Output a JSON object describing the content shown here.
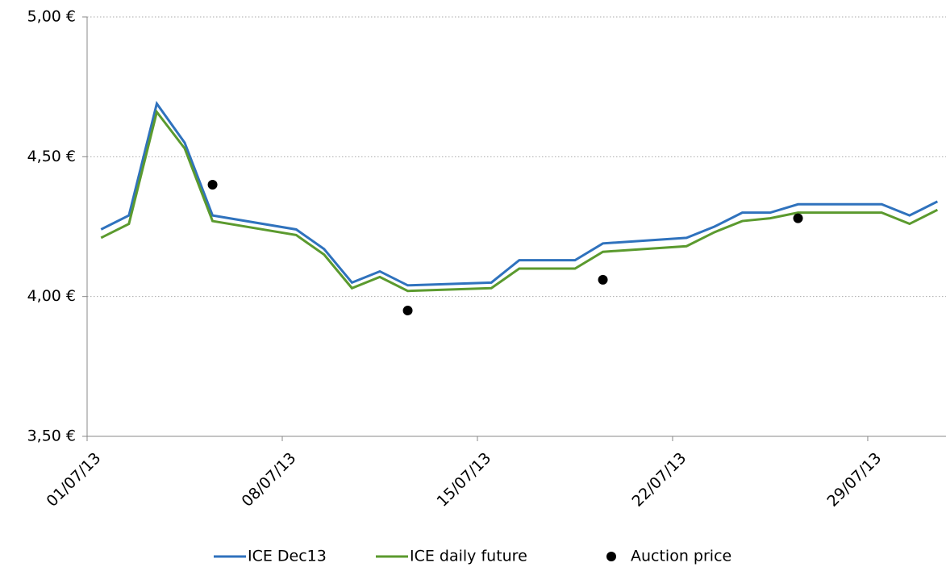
{
  "chart_data": {
    "type": "line",
    "x": [
      "01/07/13",
      "02/07/13",
      "03/07/13",
      "04/07/13",
      "05/07/13",
      "08/07/13",
      "09/07/13",
      "10/07/13",
      "11/07/13",
      "12/07/13",
      "15/07/13",
      "16/07/13",
      "17/07/13",
      "18/07/13",
      "19/07/13",
      "22/07/13",
      "23/07/13",
      "24/07/13",
      "25/07/13",
      "26/07/13",
      "29/07/13",
      "30/07/13",
      "31/07/13"
    ],
    "xticks": [
      "01/07/13",
      "08/07/13",
      "15/07/13",
      "22/07/13",
      "29/07/13"
    ],
    "series": [
      {
        "name": "ICE Dec13",
        "color": "#2f72bd",
        "values": [
          4.24,
          4.29,
          4.69,
          4.55,
          4.29,
          4.24,
          4.17,
          4.05,
          4.09,
          4.04,
          4.05,
          4.13,
          4.13,
          4.13,
          4.19,
          4.21,
          4.25,
          4.3,
          4.3,
          4.33,
          4.33,
          4.29,
          4.34
        ]
      },
      {
        "name": "ICE daily future",
        "color": "#5b9a2e",
        "values": [
          4.21,
          4.26,
          4.66,
          4.53,
          4.27,
          4.22,
          4.15,
          4.03,
          4.07,
          4.02,
          4.03,
          4.1,
          4.1,
          4.1,
          4.16,
          4.18,
          4.23,
          4.27,
          4.28,
          4.3,
          4.3,
          4.26,
          4.31
        ]
      },
      {
        "name": "Auction price",
        "color": "#000000",
        "marker": "dot",
        "values": [
          null,
          null,
          null,
          null,
          4.4,
          null,
          null,
          null,
          null,
          3.95,
          null,
          null,
          null,
          null,
          4.06,
          null,
          null,
          null,
          null,
          4.28,
          null,
          null,
          null
        ]
      }
    ],
    "ylim": [
      3.5,
      5.0
    ],
    "yticks": [
      {
        "value": 3.5,
        "label": "3,50 €"
      },
      {
        "value": 4.0,
        "label": "4,00 €"
      },
      {
        "value": 4.5,
        "label": "4,50 €"
      },
      {
        "value": 5.0,
        "label": "5,00 €"
      }
    ],
    "grid": true,
    "legend": "bottom"
  }
}
